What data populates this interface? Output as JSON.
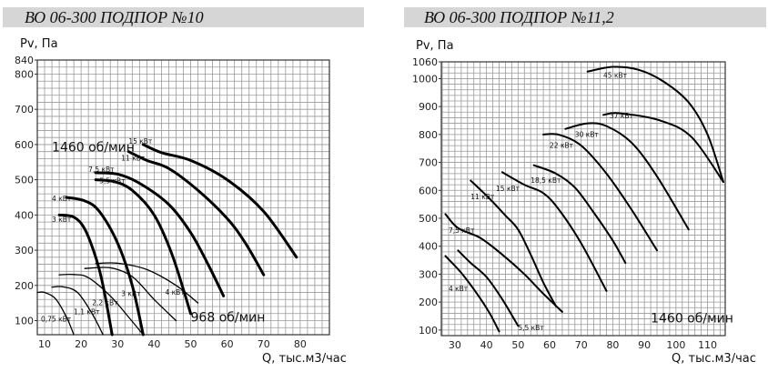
{
  "chart_data": [
    {
      "type": "line",
      "title": "ВО 06-300 ПОДПОР №10",
      "xlabel": "Q, тыс.м3/час",
      "ylabel": "Pv, Па",
      "xlim": [
        8,
        88
      ],
      "ylim": [
        60,
        840
      ],
      "grid": true,
      "x_ticks": [
        10,
        20,
        30,
        40,
        50,
        60,
        70,
        80
      ],
      "y_ticks": [
        840,
        800,
        700,
        600,
        500,
        400,
        300,
        200,
        100
      ],
      "annotations": [
        {
          "text": "1460 об/мин",
          "at": [
            12,
            580
          ]
        },
        {
          "text": "968 об/мин",
          "at": [
            50,
            98
          ]
        }
      ],
      "series": [
        {
          "name": "15 кВт",
          "rpm": 1460,
          "label_at": [
            33,
            603
          ],
          "points": [
            [
              37,
              600
            ],
            [
              42,
              577
            ],
            [
              50,
              555
            ],
            [
              60,
              500
            ],
            [
              70,
              410
            ],
            [
              79,
              280
            ]
          ]
        },
        {
          "name": "11 кВт",
          "rpm": 1460,
          "label_at": [
            31,
            555
          ],
          "points": [
            [
              33,
              580
            ],
            [
              38,
              555
            ],
            [
              44,
              532
            ],
            [
              52,
              470
            ],
            [
              60,
              390
            ],
            [
              65,
              320
            ],
            [
              70,
              230
            ]
          ]
        },
        {
          "name": "7,5 кВт",
          "rpm": 1460,
          "label_at": [
            22,
            522
          ],
          "points": [
            [
              24,
              520
            ],
            [
              30,
              516
            ],
            [
              36,
              490
            ],
            [
              44,
              430
            ],
            [
              50,
              350
            ],
            [
              55,
              255
            ],
            [
              59,
              170
            ]
          ]
        },
        {
          "name": "5,5 кВт",
          "rpm": 1460,
          "label_at": [
            25,
            490
          ],
          "points": [
            [
              24,
              500
            ],
            [
              29,
              495
            ],
            [
              34,
              470
            ],
            [
              40,
              400
            ],
            [
              45,
              285
            ],
            [
              50,
              120
            ]
          ]
        },
        {
          "name": "4 кВт",
          "rpm": 1460,
          "label_at": [
            12,
            440
          ],
          "points": [
            [
              16,
              450
            ],
            [
              21,
              440
            ],
            [
              25,
              410
            ],
            [
              30,
              320
            ],
            [
              34,
              200
            ],
            [
              37,
              60
            ]
          ]
        },
        {
          "name": "3 кВт",
          "rpm": 1460,
          "label_at": [
            12,
            380
          ],
          "points": [
            [
              14,
              400
            ],
            [
              18,
              394
            ],
            [
              21,
              360
            ],
            [
              24,
              280
            ],
            [
              26,
              200
            ],
            [
              28.5,
              60
            ]
          ]
        },
        {
          "name": "4 кВт",
          "rpm": 968,
          "label_at": [
            43,
            174
          ],
          "points": [
            [
              24,
              262
            ],
            [
              30,
              263
            ],
            [
              38,
              245
            ],
            [
              46,
              200
            ],
            [
              52,
              150
            ]
          ]
        },
        {
          "name": "3 кВт",
          "rpm": 968,
          "label_at": [
            31,
            170
          ],
          "points": [
            [
              21,
              248
            ],
            [
              28,
              250
            ],
            [
              34,
              225
            ],
            [
              40,
              160
            ],
            [
              46,
              100
            ]
          ]
        },
        {
          "name": "2,2 кВт",
          "rpm": 968,
          "label_at": [
            23,
            144
          ],
          "points": [
            [
              14,
              230
            ],
            [
              18,
              231
            ],
            [
              22,
              222
            ],
            [
              28,
              170
            ],
            [
              33,
              110
            ],
            [
              37,
              60
            ]
          ]
        },
        {
          "name": "1,1 кВт",
          "rpm": 968,
          "label_at": [
            18,
            118
          ],
          "points": [
            [
              12,
              195
            ],
            [
              15,
              196
            ],
            [
              19,
              180
            ],
            [
              23,
              120
            ],
            [
              26,
              60
            ]
          ]
        },
        {
          "name": "0,75 кВт",
          "rpm": 968,
          "label_at": [
            9,
            98
          ],
          "points": [
            [
              8,
              180
            ],
            [
              10,
              180
            ],
            [
              13,
              162
            ],
            [
              16,
              110
            ],
            [
              18,
              60
            ]
          ]
        }
      ]
    },
    {
      "type": "line",
      "title": "ВО 06-300 ПОДПОР №11,2",
      "xlabel": "Q, тыс.м3/час",
      "ylabel": "Pv, Па",
      "xlim": [
        25.7,
        115.6
      ],
      "ylim": [
        80,
        1060
      ],
      "grid": true,
      "x_ticks": [
        30,
        40,
        50,
        60,
        70,
        80,
        90,
        100,
        110
      ],
      "y_ticks": [
        1060,
        1000,
        900,
        800,
        700,
        600,
        500,
        400,
        300,
        200,
        100
      ],
      "annotations": [
        {
          "text": "1460 об/мин",
          "at": [
            92,
            128
          ]
        }
      ],
      "series": [
        {
          "name": "45 кВт",
          "rpm": 1460,
          "label_at": [
            77,
            1003
          ],
          "points": [
            [
              72,
              1025
            ],
            [
              80,
              1042
            ],
            [
              88,
              1032
            ],
            [
              96,
              990
            ],
            [
              104,
              915
            ],
            [
              110,
              800
            ],
            [
              115,
              630
            ]
          ]
        },
        {
          "name": "37 кВт",
          "rpm": 1460,
          "label_at": [
            79,
            858
          ],
          "points": [
            [
              77,
              870
            ],
            [
              82,
              876
            ],
            [
              95,
              850
            ],
            [
              105,
              790
            ],
            [
              115,
              630
            ]
          ]
        },
        {
          "name": "30 кВт",
          "rpm": 1460,
          "label_at": [
            68,
            792
          ],
          "points": [
            [
              65,
              820
            ],
            [
              72,
              840
            ],
            [
              78,
              830
            ],
            [
              86,
              770
            ],
            [
              94,
              650
            ],
            [
              104,
              460
            ]
          ]
        },
        {
          "name": "22 кВт",
          "rpm": 1460,
          "label_at": [
            60,
            752
          ],
          "points": [
            [
              58,
              800
            ],
            [
              63,
              799
            ],
            [
              70,
              760
            ],
            [
              78,
              660
            ],
            [
              86,
              530
            ],
            [
              94,
              385
            ]
          ]
        },
        {
          "name": "18,5 кВт",
          "rpm": 1460,
          "label_at": [
            54,
            627
          ],
          "points": [
            [
              55,
              690
            ],
            [
              62,
              660
            ],
            [
              68,
              610
            ],
            [
              74,
              520
            ],
            [
              80,
              420
            ],
            [
              84,
              340
            ]
          ]
        },
        {
          "name": "15 кВт",
          "rpm": 1460,
          "label_at": [
            43,
            598
          ],
          "points": [
            [
              45,
              665
            ],
            [
              52,
              620
            ],
            [
              58,
              590
            ],
            [
              63,
              530
            ],
            [
              70,
              410
            ],
            [
              78,
              240
            ]
          ]
        },
        {
          "name": "11 кВт",
          "rpm": 1460,
          "label_at": [
            35,
            568
          ],
          "points": [
            [
              35,
              635
            ],
            [
              41,
              570
            ],
            [
              46,
              510
            ],
            [
              50,
              460
            ],
            [
              54,
              370
            ],
            [
              58,
              270
            ],
            [
              62,
              185
            ]
          ]
        },
        {
          "name": "7,5 кВт",
          "rpm": 1460,
          "label_at": [
            28,
            448
          ],
          "points": [
            [
              27,
              515
            ],
            [
              31,
              465
            ],
            [
              38,
              430
            ],
            [
              45,
              370
            ],
            [
              52,
              300
            ],
            [
              58,
              230
            ],
            [
              64,
              165
            ]
          ]
        },
        {
          "name": "5,5 кВт",
          "rpm": 1460,
          "label_at": [
            50,
            100
          ],
          "points": [
            [
              31,
              385
            ],
            [
              35,
              340
            ],
            [
              40,
              290
            ],
            [
              45,
              210
            ],
            [
              50,
              115
            ]
          ]
        },
        {
          "name": "4 кВт",
          "rpm": 1460,
          "label_at": [
            28,
            240
          ],
          "points": [
            [
              27,
              365
            ],
            [
              32,
              305
            ],
            [
              37,
              230
            ],
            [
              41,
              160
            ],
            [
              44,
              95
            ]
          ]
        }
      ]
    }
  ]
}
